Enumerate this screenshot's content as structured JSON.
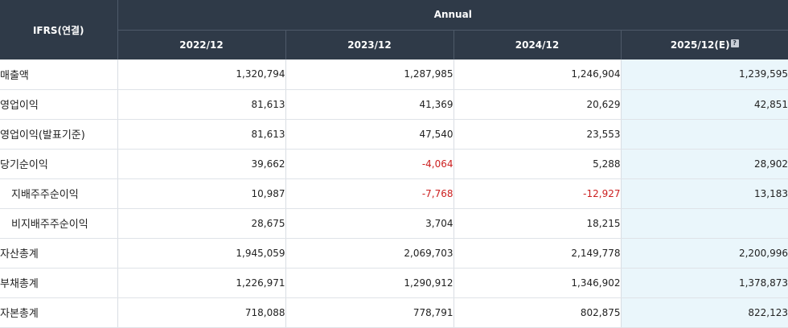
{
  "header": {
    "label": "IFRS(연결)",
    "group": "Annual",
    "periods": [
      "2022/12",
      "2023/12",
      "2024/12",
      "2025/12(E)"
    ],
    "estimate_help_icon": "help-icon"
  },
  "rows": [
    {
      "label": "매출액",
      "values": [
        "1,320,794",
        "1,287,985",
        "1,246,904",
        "1,239,595"
      ]
    },
    {
      "label": "영업이익",
      "values": [
        "81,613",
        "41,369",
        "20,629",
        "42,851"
      ]
    },
    {
      "label": "영업이익(발표기준)",
      "values": [
        "81,613",
        "47,540",
        "23,553",
        ""
      ]
    },
    {
      "label": "당기순이익",
      "values": [
        "39,662",
        "-4,064",
        "5,288",
        "28,902"
      ]
    },
    {
      "label": "지배주주순이익",
      "values": [
        "10,987",
        "-7,768",
        "-12,927",
        "13,183"
      ]
    },
    {
      "label": "비지배주주순이익",
      "values": [
        "28,675",
        "3,704",
        "18,215",
        ""
      ]
    },
    {
      "label": "자산총계",
      "values": [
        "1,945,059",
        "2,069,703",
        "2,149,778",
        "2,200,996"
      ]
    },
    {
      "label": "부채총계",
      "values": [
        "1,226,971",
        "1,290,912",
        "1,346,902",
        "1,378,873"
      ]
    },
    {
      "label": "자본총계",
      "values": [
        "718,088",
        "778,791",
        "802,875",
        "822,123"
      ]
    }
  ],
  "colors": {
    "header_bg": "#2f3a48",
    "estimate_col_bg": "#eaf6fb",
    "negative": "#cc1f1f"
  }
}
